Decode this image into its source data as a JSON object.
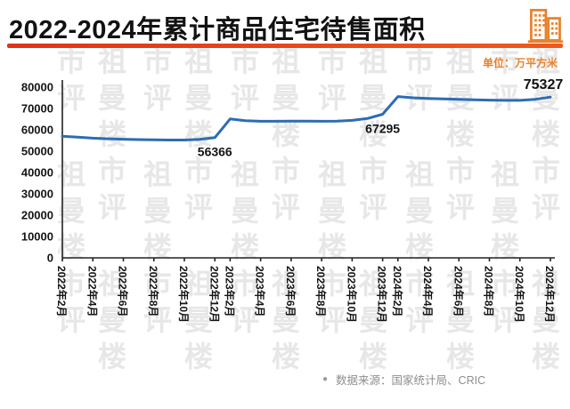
{
  "title": "2022-2024年累计商品住宅待售面积",
  "unit_label": "单位：万平方米",
  "watermark": {
    "text": "祖曼楼市评"
  },
  "footer": {
    "bullet": "●",
    "source_label": "数据来源：国家统计局、CRIC"
  },
  "colors": {
    "accent_underline": "#e8441f",
    "icon_orange": "#e8822c",
    "line_blue": "#2d6cb5",
    "unit_orange": "#e8822c"
  },
  "chart_data": {
    "type": "line",
    "title": "2022-2024年累计商品住宅待售面积",
    "ylabel": "万平方米",
    "ylim": [
      0,
      80000
    ],
    "ytick_step": 10000,
    "line_color": "#2d6cb5",
    "legend": "none",
    "grid": "off",
    "values": [
      57000,
      56600,
      56100,
      55800,
      55600,
      55400,
      55300,
      55200,
      55200,
      55500,
      56366,
      65100,
      64300,
      64000,
      64000,
      64100,
      64100,
      64000,
      64100,
      64400,
      65300,
      67295,
      75600,
      75000,
      74700,
      74500,
      74300,
      74100,
      73900,
      73800,
      73800,
      74300,
      75327
    ],
    "ticks": [
      {
        "i": 0,
        "label": "2022年2月"
      },
      {
        "i": 2,
        "label": "2022年4月"
      },
      {
        "i": 4,
        "label": "2022年6月"
      },
      {
        "i": 6,
        "label": "2022年8月"
      },
      {
        "i": 8,
        "label": "2022年10月"
      },
      {
        "i": 10,
        "label": "2022年12月"
      },
      {
        "i": 11,
        "label": "2023年2月"
      },
      {
        "i": 13,
        "label": "2023年4月"
      },
      {
        "i": 15,
        "label": "2023年6月"
      },
      {
        "i": 17,
        "label": "2023年8月"
      },
      {
        "i": 19,
        "label": "2023年10月"
      },
      {
        "i": 21,
        "label": "2023年12月"
      },
      {
        "i": 22,
        "label": "2024年2月"
      },
      {
        "i": 24,
        "label": "2024年4月"
      },
      {
        "i": 26,
        "label": "2024年6月"
      },
      {
        "i": 28,
        "label": "2024年8月"
      },
      {
        "i": 30,
        "label": "2024年10月"
      },
      {
        "i": 32,
        "label": "2024年12月"
      }
    ],
    "annotations": [
      {
        "label": "56366",
        "index": 10,
        "position": "below"
      },
      {
        "label": "67295",
        "index": 21,
        "position": "below"
      },
      {
        "label": "75327",
        "index": 32,
        "position": "above",
        "emphasis": true,
        "dx": -8
      }
    ]
  }
}
